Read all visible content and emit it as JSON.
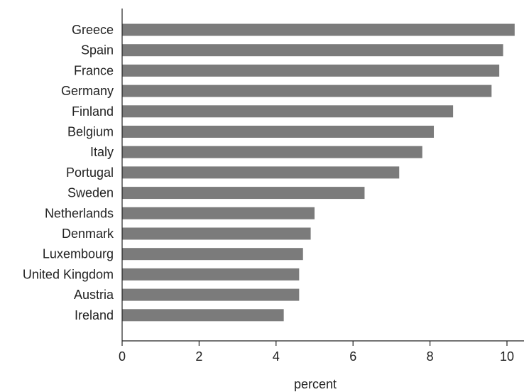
{
  "chart_data": {
    "type": "bar",
    "orientation": "horizontal",
    "categories": [
      "Greece",
      "Spain",
      "France",
      "Germany",
      "Finland",
      "Belgium",
      "Italy",
      "Portugal",
      "Sweden",
      "Netherlands",
      "Denmark",
      "Luxembourg",
      "United Kingdom",
      "Austria",
      "Ireland"
    ],
    "values": [
      10.2,
      9.9,
      9.8,
      9.6,
      8.6,
      8.1,
      7.8,
      7.2,
      6.3,
      5.0,
      4.9,
      4.7,
      4.6,
      4.6,
      4.2
    ],
    "title": "",
    "xlabel": "percent",
    "ylabel": "",
    "xlim": [
      0,
      10.3
    ],
    "xticks": [
      0,
      2,
      4,
      6,
      8,
      10
    ],
    "xtick_labels": [
      "0",
      "2",
      "4",
      "6",
      "8",
      "10"
    ],
    "grid": false,
    "legend": "none",
    "bar_color": "#7b7b7b",
    "axis_color": "#222222"
  }
}
